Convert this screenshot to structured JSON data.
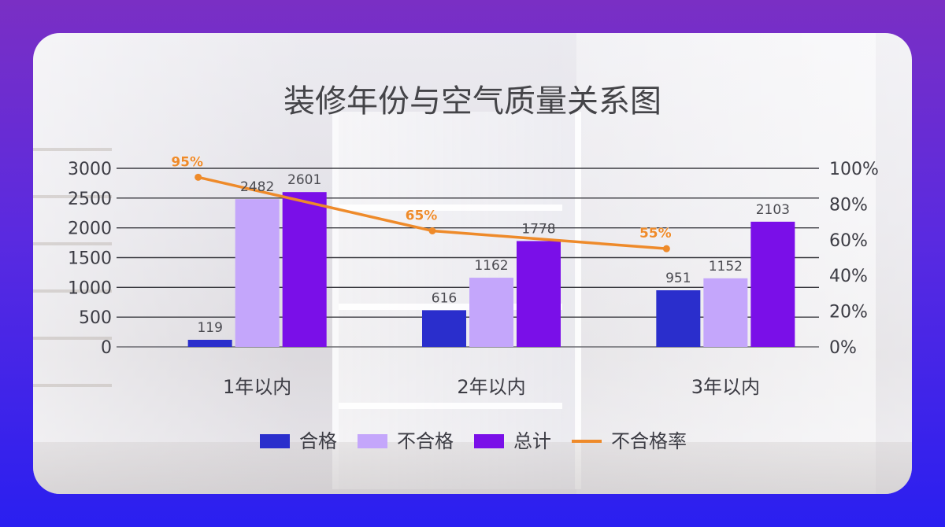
{
  "chart_data": {
    "type": "bar",
    "title": "装修年份与空气质量关系图",
    "categories": [
      "1年以内",
      "2年以内",
      "3年以内"
    ],
    "series": [
      {
        "name": "合格",
        "kind": "bar",
        "color": "#2a2ecc",
        "values": [
          119,
          616,
          951
        ]
      },
      {
        "name": "不合格",
        "kind": "bar",
        "color": "#c4a6fb",
        "values": [
          2482,
          1162,
          1152
        ]
      },
      {
        "name": "总计",
        "kind": "bar",
        "color": "#7a0fe8",
        "values": [
          2601,
          1778,
          2103
        ]
      },
      {
        "name": "不合格率",
        "kind": "line",
        "axis": "right",
        "color": "#ee8a2a",
        "values": [
          95,
          65,
          55
        ],
        "labels": [
          "95%",
          "65%",
          "55%"
        ]
      }
    ],
    "y_left": {
      "range": [
        0,
        3000
      ],
      "ticks": [
        "0",
        "500",
        "1000",
        "1500",
        "2000",
        "2500",
        "3000"
      ]
    },
    "y_right": {
      "range": [
        0,
        100
      ],
      "ticks": [
        "0%",
        "20%",
        "40%",
        "60%",
        "80%",
        "100%"
      ]
    },
    "grid": true,
    "legend_position": "bottom"
  }
}
